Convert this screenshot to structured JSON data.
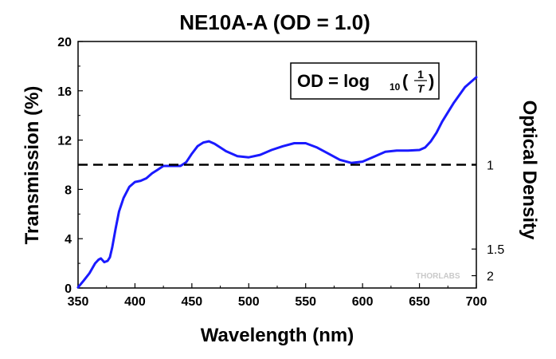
{
  "chart_data": {
    "type": "line",
    "title": "NE10A-A (OD = 1.0)",
    "xlabel": "Wavelength (nm)",
    "ylabel": "Transmission (%)",
    "y2label": "Optical Density",
    "xlim": [
      350,
      700
    ],
    "ylim": [
      0,
      20
    ],
    "x_ticks": [
      350,
      400,
      450,
      500,
      550,
      600,
      650,
      700
    ],
    "y_ticks": [
      0,
      4,
      8,
      12,
      16,
      20
    ],
    "y2_ticks": [
      {
        "label": "1",
        "transmission": 10
      },
      {
        "label": "1.5",
        "transmission": 3.16
      },
      {
        "label": "2",
        "transmission": 1
      }
    ],
    "grid": false,
    "legend": "none",
    "series": [
      {
        "color": "#1a1aff",
        "style": "solid",
        "x": [
          350,
          355,
          360,
          365,
          368,
          370,
          373,
          376,
          378,
          380,
          383,
          386,
          390,
          395,
          400,
          405,
          410,
          415,
          420,
          425,
          430,
          435,
          440,
          445,
          450,
          455,
          460,
          465,
          470,
          475,
          480,
          490,
          500,
          510,
          520,
          530,
          540,
          550,
          560,
          570,
          580,
          590,
          600,
          610,
          620,
          630,
          640,
          650,
          655,
          660,
          665,
          670,
          680,
          690,
          700
        ],
        "y": [
          0.05,
          0.6,
          1.2,
          2.0,
          2.3,
          2.4,
          2.1,
          2.2,
          2.5,
          3.3,
          4.8,
          6.2,
          7.3,
          8.2,
          8.6,
          8.7,
          8.9,
          9.3,
          9.6,
          9.9,
          9.9,
          9.9,
          9.9,
          10.2,
          10.9,
          11.5,
          11.8,
          11.9,
          11.7,
          11.4,
          11.1,
          10.7,
          10.6,
          10.8,
          11.2,
          11.5,
          11.75,
          11.75,
          11.4,
          10.9,
          10.4,
          10.15,
          10.25,
          10.65,
          11.05,
          11.15,
          11.15,
          11.2,
          11.4,
          11.9,
          12.6,
          13.5,
          15.0,
          16.3,
          17.1
        ]
      },
      {
        "color": "#000000",
        "style": "dashed",
        "x": [
          350,
          700
        ],
        "y": [
          10,
          10
        ]
      }
    ],
    "annotations": [
      {
        "text": "OD = log",
        "subscript": "10",
        "numerator": "1",
        "denominator": "T",
        "placement": "top-right"
      }
    ],
    "watermark": "THORLABS"
  }
}
